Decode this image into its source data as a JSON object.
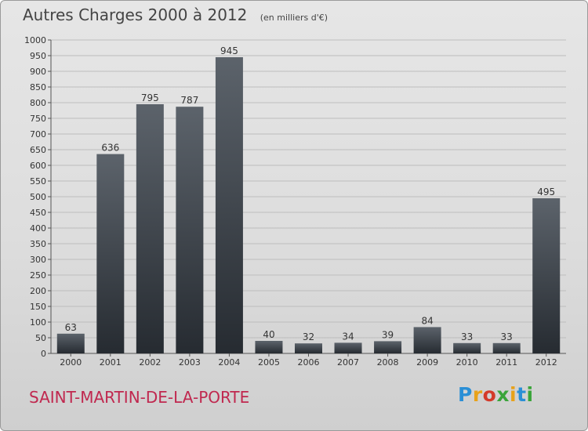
{
  "header": {
    "title": "Autres Charges 2000 à 2012",
    "unit": "(en milliers d'€)"
  },
  "commune": "SAINT-MARTIN-DE-LA-PORTE",
  "logo": {
    "text": "Proxiti",
    "letters": [
      {
        "ch": "P",
        "color": "#2a8fd6"
      },
      {
        "ch": "r",
        "color": "#e8a21a"
      },
      {
        "ch": "o",
        "color": "#d43a2a"
      },
      {
        "ch": "x",
        "color": "#3aa43a"
      },
      {
        "ch": "i",
        "color": "#e8a21a"
      },
      {
        "ch": "t",
        "color": "#2a8fd6"
      },
      {
        "ch": "i",
        "color": "#3aa43a"
      }
    ]
  },
  "chart_data": {
    "type": "bar",
    "categories": [
      "2000",
      "2001",
      "2002",
      "2003",
      "2004",
      "2005",
      "2006",
      "2007",
      "2008",
      "2009",
      "2010",
      "2011",
      "2012"
    ],
    "values": [
      63,
      636,
      795,
      787,
      945,
      40,
      32,
      34,
      39,
      84,
      33,
      33,
      495
    ],
    "title": "Autres Charges 2000 à 2012",
    "ylim": [
      0,
      1000
    ],
    "yticks": [
      0,
      50,
      100,
      150,
      200,
      250,
      300,
      350,
      400,
      450,
      500,
      550,
      600,
      650,
      700,
      750,
      800,
      850,
      900,
      950,
      1000
    ],
    "grid": true,
    "colors": {
      "bar_top": "#5c636b",
      "bar_bottom": "#262b31",
      "grid": "#bdbdbd",
      "axis_text": "#333333"
    }
  }
}
